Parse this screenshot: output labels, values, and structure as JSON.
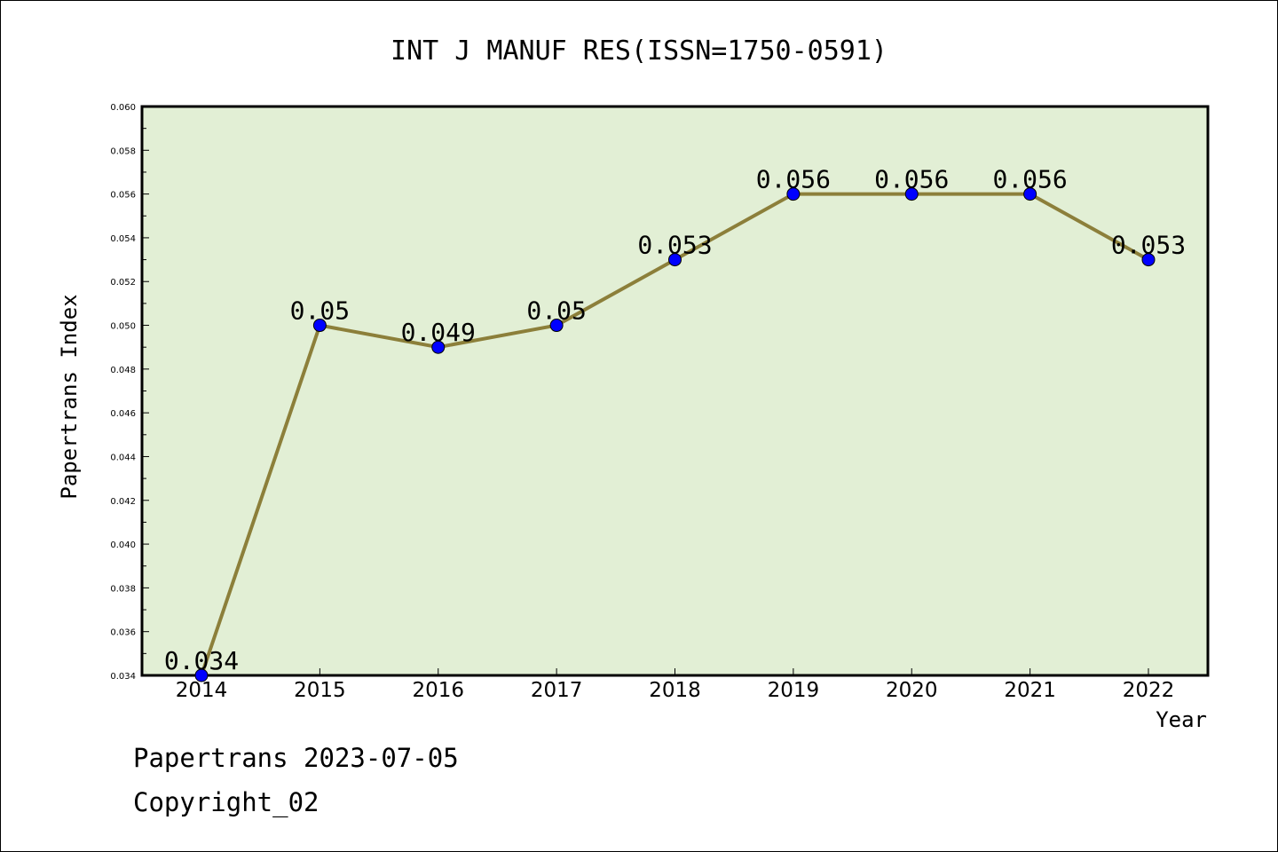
{
  "chart_data": {
    "type": "line",
    "title": "INT J MANUF RES(ISSN=1750-0591)",
    "xlabel": "Year",
    "ylabel": "Papertrans Index",
    "categories": [
      "2014",
      "2015",
      "2016",
      "2017",
      "2018",
      "2019",
      "2020",
      "2021",
      "2022"
    ],
    "series": [
      {
        "name": "Papertrans Index",
        "values": [
          0.034,
          0.05,
          0.049,
          0.05,
          0.053,
          0.056,
          0.056,
          0.056,
          0.053
        ],
        "data_labels": [
          "0.034",
          "0.05",
          "0.049",
          "0.05",
          "0.053",
          "0.056",
          "0.056",
          "0.056",
          "0.053"
        ]
      }
    ],
    "ylim": [
      0.034,
      0.06
    ],
    "yticks": [
      "0.034",
      "0.036",
      "0.038",
      "0.040",
      "0.042",
      "0.044",
      "0.046",
      "0.048",
      "0.050",
      "0.052",
      "0.054",
      "0.056",
      "0.058",
      "0.060"
    ],
    "grid": false,
    "colors": {
      "plot_background": "#e2efd5",
      "line": "#8c7f3a",
      "marker": "#0000ff"
    }
  },
  "footer": {
    "line1": "Papertrans 2023-07-05",
    "line2": "Copyright_02"
  }
}
